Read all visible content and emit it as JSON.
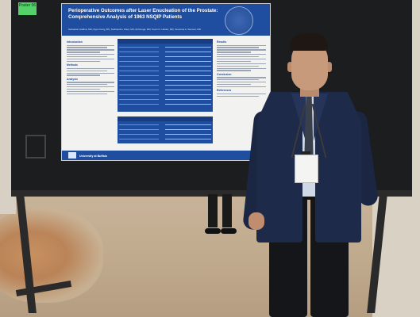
{
  "sticky_note": {
    "text": "Poster 06"
  },
  "poster": {
    "title": "Perioperative Outcomes after Laser Enucleation of the Prostate: Comprehensive Analysis of 1963 NSQIP Patients",
    "authors": "Sebastian Gallina, MD; Ryan Kang, BS; Sudhanshu Patel, MS; Ali Rouga, MD; Kevin D. Haider, MD; Guessna A. Samuel, MD",
    "sections_left": [
      "Introduction",
      "Methods",
      "Analysis"
    ],
    "sections_right": [
      "Results",
      "Conclusion",
      "References"
    ],
    "footer": "University at Buffalo"
  },
  "colors": {
    "poster_blue": "#1f4ea0",
    "board": "#1c1d1f",
    "sticky_green": "#55d06a",
    "jacket_navy": "#1e2a4a"
  }
}
